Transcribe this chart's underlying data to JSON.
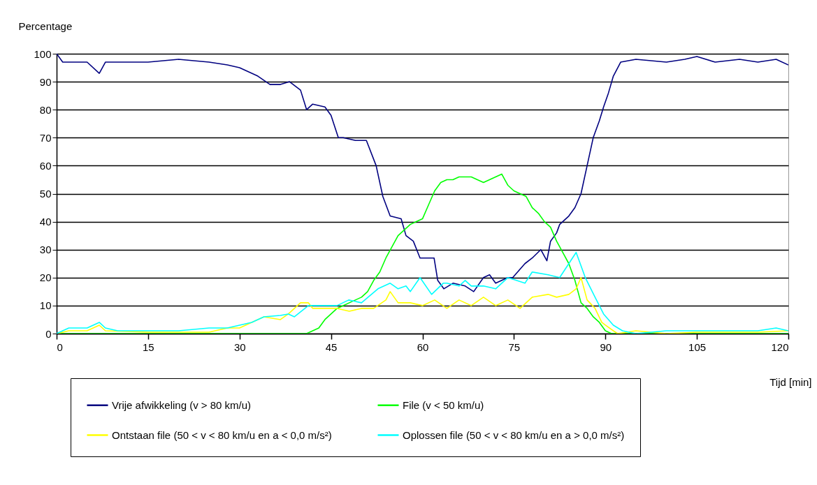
{
  "chart_data": {
    "type": "line",
    "xlabel": "Tijd [min]",
    "ylabel": "Percentage",
    "xlim": [
      0,
      120
    ],
    "xticks": [
      0,
      15,
      30,
      45,
      60,
      75,
      90,
      105,
      120
    ],
    "ylim": [
      0,
      100
    ],
    "yticks": [
      0,
      10,
      20,
      30,
      40,
      50,
      60,
      70,
      80,
      90,
      100
    ],
    "grid": "y",
    "legend": "bottom",
    "marker": "none",
    "line_style": "solid",
    "series": [
      {
        "name": "Vrije afwikkeling (v > 80 km/u)",
        "color": "#000080",
        "x": [
          0,
          1,
          3,
          5,
          7,
          8,
          10,
          15,
          20,
          25,
          28,
          30,
          33,
          35,
          36.7,
          38.2,
          40,
          41,
          42,
          44,
          45,
          46.2,
          47,
          49,
          50.8,
          52.4,
          53.5,
          54.7,
          56.5,
          57.3,
          58.5,
          59.6,
          61,
          61.9,
          62.5,
          63.5,
          65,
          67,
          68.4,
          70,
          71,
          72,
          74,
          74.8,
          76.8,
          78,
          79.4,
          80.4,
          81,
          82,
          82.5,
          84,
          85,
          86,
          87,
          88,
          89,
          89.7,
          90.5,
          91.3,
          92.5,
          95,
          100,
          103,
          105,
          108,
          112,
          115,
          118,
          120
        ],
        "values": [
          100,
          97,
          97,
          97,
          93,
          97,
          97,
          97,
          98,
          97,
          96,
          95,
          92,
          89,
          89,
          90,
          87,
          80,
          82,
          81,
          78,
          70,
          70,
          69,
          69,
          60,
          49,
          42,
          41,
          35,
          33,
          27,
          27,
          27,
          19,
          16,
          18,
          17,
          15,
          20,
          21,
          18,
          20,
          20,
          25,
          27,
          30,
          26,
          33,
          36,
          39,
          42,
          45,
          50,
          60,
          70,
          76,
          81,
          86,
          92,
          97,
          98,
          97,
          98,
          99,
          97,
          98,
          97,
          98,
          96
        ]
      },
      {
        "name": "File (v < 50 km/u)",
        "color": "#00ff00",
        "x": [
          0,
          41,
          42,
          43,
          44,
          45,
          46,
          47,
          48,
          49,
          50,
          51,
          52,
          53,
          54,
          55,
          56,
          57,
          58,
          59,
          60,
          61,
          62,
          63,
          64,
          65,
          66,
          67,
          68,
          69,
          70,
          71,
          72,
          73,
          74,
          75,
          76,
          77,
          78,
          79,
          80,
          81,
          82,
          83,
          84,
          85,
          86,
          87,
          88,
          89,
          90,
          91,
          120
        ],
        "values": [
          0,
          0,
          1,
          2,
          5,
          7,
          9,
          10,
          11,
          12,
          13,
          15,
          19,
          22,
          27,
          31,
          35,
          37,
          39,
          40,
          41,
          46,
          51,
          54,
          55,
          55,
          56,
          56,
          56,
          55,
          54,
          55,
          56,
          57,
          53,
          51,
          50,
          49,
          45,
          43,
          40,
          38,
          33,
          29,
          25,
          19,
          11,
          9,
          6,
          4,
          1,
          0,
          0
        ]
      },
      {
        "name": "Ontstaan file (50 < v < 80 km/u en a < 0,0 m/s²)",
        "color": "#ffff00",
        "x": [
          0,
          2,
          5,
          7,
          8,
          15,
          25,
          28,
          30,
          32,
          34,
          36.7,
          38,
          40,
          41.3,
          42,
          44,
          46,
          48,
          50,
          52,
          54,
          54.7,
          56,
          58,
          60,
          62,
          64,
          66,
          68,
          70,
          72,
          74,
          76,
          78,
          80.6,
          82,
          84,
          85.2,
          86,
          87,
          88.3,
          89.4,
          90,
          91.3,
          92,
          95,
          100,
          105,
          110,
          115,
          120
        ],
        "values": [
          0,
          1,
          1,
          3,
          1,
          0.5,
          0.5,
          2,
          2,
          4,
          6,
          5,
          7,
          11,
          11,
          9,
          9,
          9,
          8,
          9,
          9,
          12,
          15,
          11,
          11,
          10,
          12,
          9,
          12,
          10,
          13,
          10,
          12,
          9,
          13,
          14,
          13,
          14,
          16,
          20,
          12,
          9,
          4,
          3,
          1,
          0,
          1,
          0,
          0.5,
          0.5,
          0.5,
          1
        ]
      },
      {
        "name": "Oplossen file (50 < v < 80 km/u en a > 0,0 m/s²)",
        "color": "#00ffff",
        "x": [
          0,
          1,
          2,
          5,
          7,
          8,
          10,
          15,
          20,
          25,
          28,
          30,
          32,
          34,
          36.7,
          38,
          39,
          41.3,
          44.4,
          46,
          47.9,
          50,
          52.7,
          54.7,
          56,
          57.3,
          58,
          59.6,
          61.5,
          63.4,
          64,
          66,
          67,
          68,
          70,
          72,
          74,
          76.8,
          78,
          80.6,
          82.5,
          84,
          85.2,
          86.7,
          88.3,
          89.7,
          90.5,
          91.3,
          92.8,
          95,
          100,
          105,
          108,
          110,
          115,
          118,
          120
        ],
        "values": [
          0,
          1,
          2,
          2,
          4,
          2,
          1,
          1,
          1,
          2,
          2,
          3,
          4,
          6,
          6.5,
          7,
          6,
          10,
          10,
          10,
          12,
          11,
          16,
          18,
          16,
          17,
          15,
          20,
          14,
          18,
          18,
          17,
          19,
          17,
          17,
          16,
          20,
          18,
          22,
          21,
          20,
          25,
          29,
          20,
          13,
          7,
          5,
          3,
          1,
          0,
          1,
          1,
          1,
          1,
          1,
          2,
          1
        ]
      }
    ]
  }
}
